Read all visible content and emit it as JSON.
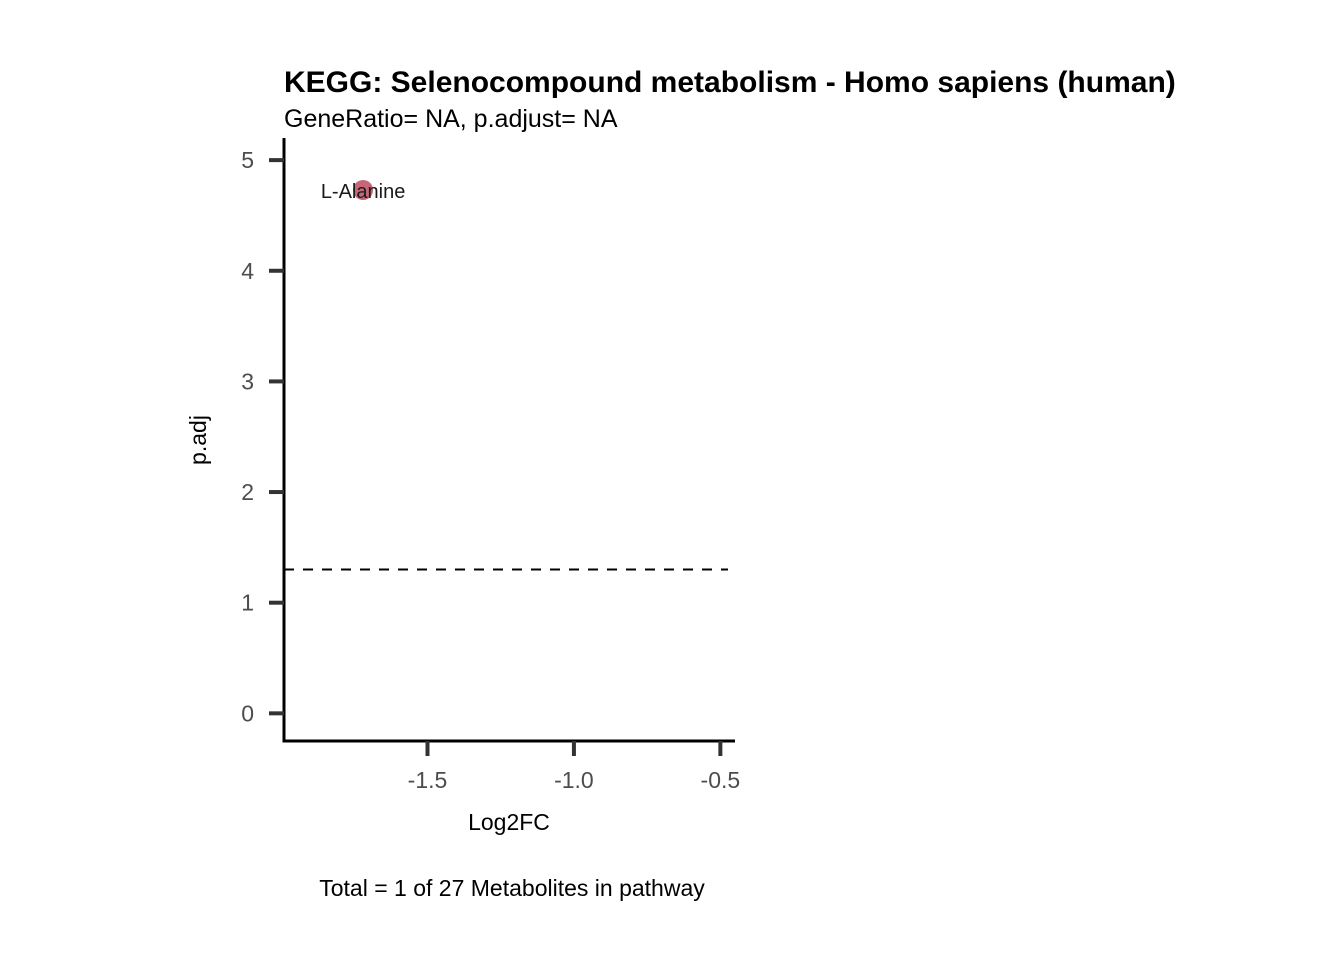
{
  "colors": {
    "point": "#c0566a",
    "axis": "#000000",
    "tick": "#333333",
    "threshold": "#000000"
  },
  "chart_data": {
    "type": "scatter",
    "title": "KEGG: Selenocompound metabolism - Homo sapiens (human)",
    "subtitle": "GeneRatio= NA, p.adjust= NA",
    "xlabel": "Log2FC",
    "ylabel": "p.adj",
    "caption": "Total = 1 of 27 Metabolites in pathway",
    "xlim": [
      -1.99,
      -0.45
    ],
    "ylim": [
      -0.25,
      5.2
    ],
    "x_ticks": [
      -1.5,
      -1.0,
      -0.5
    ],
    "x_tick_labels": [
      "-1.5",
      "-1.0",
      "-0.5"
    ],
    "y_ticks": [
      0,
      1,
      2,
      3,
      4,
      5
    ],
    "y_tick_labels": [
      "0",
      "1",
      "2",
      "3",
      "4",
      "5"
    ],
    "threshold_y": 1.3,
    "threshold_style": "dashed",
    "grid": false,
    "legend": "none",
    "series": [
      {
        "points": [
          {
            "x": -1.72,
            "y": 4.73,
            "label": "L-Alanine"
          }
        ]
      }
    ]
  }
}
